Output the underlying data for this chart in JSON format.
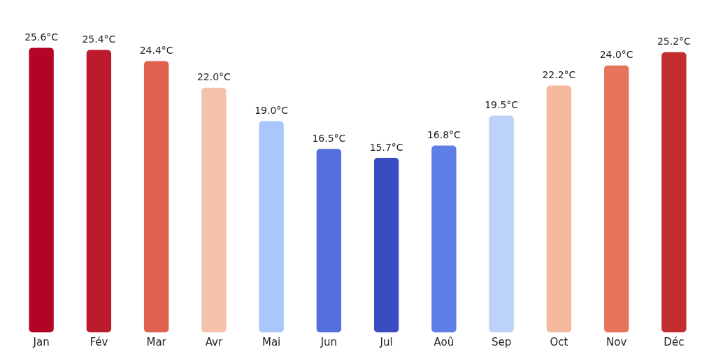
{
  "chart_data": {
    "type": "bar",
    "categories": [
      "Jan",
      "Fév",
      "Mar",
      "Avr",
      "Mai",
      "Jun",
      "Jul",
      "Aoû",
      "Sep",
      "Oct",
      "Nov",
      "Déc"
    ],
    "values": [
      25.6,
      25.4,
      24.4,
      22.0,
      19.0,
      16.5,
      15.7,
      16.8,
      19.5,
      22.2,
      24.0,
      25.2
    ],
    "colors": [
      "#b40426",
      "#bb1b2c",
      "#de604d",
      "#f4c2a8",
      "#aac7fd",
      "#536edd",
      "#3b4cc0",
      "#5f7fe8",
      "#bcd2f7",
      "#f5b99d",
      "#e7745b",
      "#c32e31"
    ],
    "value_labels": [
      "25.6°C",
      "25.4°C",
      "24.4°C",
      "22.0°C",
      "19.0°C",
      "16.5°C",
      "15.7°C",
      "16.8°C",
      "19.5°C",
      "22.2°C",
      "24.0°C",
      "25.2°C"
    ],
    "grid": false,
    "legend": false
  }
}
